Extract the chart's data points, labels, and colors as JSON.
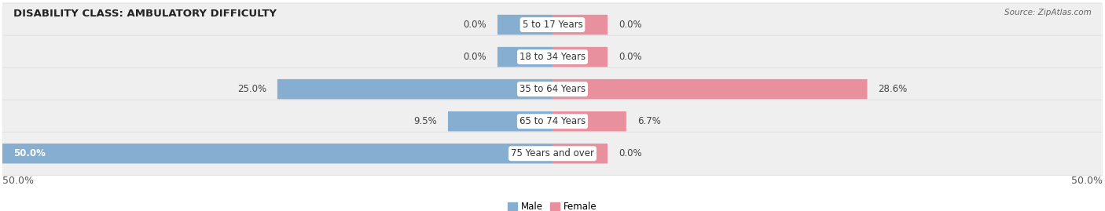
{
  "title": "DISABILITY CLASS: AMBULATORY DIFFICULTY",
  "source": "Source: ZipAtlas.com",
  "categories": [
    "5 to 17 Years",
    "18 to 34 Years",
    "35 to 64 Years",
    "65 to 74 Years",
    "75 Years and over"
  ],
  "male_values": [
    0.0,
    0.0,
    25.0,
    9.5,
    50.0
  ],
  "female_values": [
    0.0,
    0.0,
    28.6,
    6.7,
    0.0
  ],
  "male_color": "#85aed0",
  "female_color": "#e8909e",
  "row_bg_color": "#efefef",
  "row_border_color": "#d8d8d8",
  "max_val": 50.0,
  "legend_male": "Male",
  "legend_female": "Female",
  "title_fontsize": 9.5,
  "label_fontsize": 8.5,
  "tick_fontsize": 9,
  "stub_size": 5.0
}
